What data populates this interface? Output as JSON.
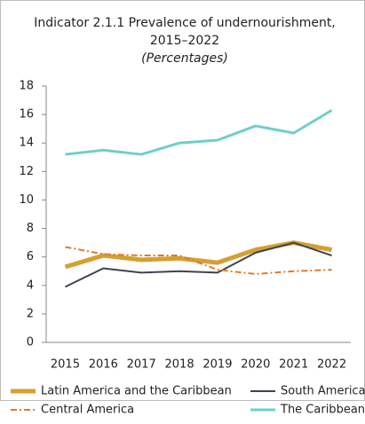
{
  "chart_data": {
    "type": "line",
    "title": [
      "Indicator 2.1.1 Prevalence of undernourishment,",
      "2015–2022"
    ],
    "subtitle": "(Percentages)",
    "categories": [
      "2015",
      "2016",
      "2017",
      "2018",
      "2019",
      "2020",
      "2021",
      "2022"
    ],
    "series": [
      {
        "name": "Latin America and the Caribbean",
        "color": "#d4a030",
        "values": [
          5.3,
          6.1,
          5.8,
          5.9,
          5.6,
          6.5,
          7.0,
          6.5
        ]
      },
      {
        "name": "South America",
        "color": "#3d4350",
        "values": [
          3.9,
          5.2,
          4.9,
          5.0,
          4.9,
          6.3,
          7.0,
          6.1
        ]
      },
      {
        "name": "Central America",
        "color": "#e07b2a",
        "values": [
          6.7,
          6.2,
          6.1,
          6.1,
          5.1,
          4.8,
          5.0,
          5.1
        ]
      },
      {
        "name": "The Caribbean",
        "color": "#6fcfcb",
        "values": [
          13.2,
          13.5,
          13.2,
          14.0,
          14.2,
          15.2,
          14.7,
          16.3
        ]
      }
    ],
    "ylim": [
      0,
      18
    ],
    "yticks": [
      0,
      2,
      4,
      6,
      8,
      10,
      12,
      14,
      16,
      18
    ]
  }
}
